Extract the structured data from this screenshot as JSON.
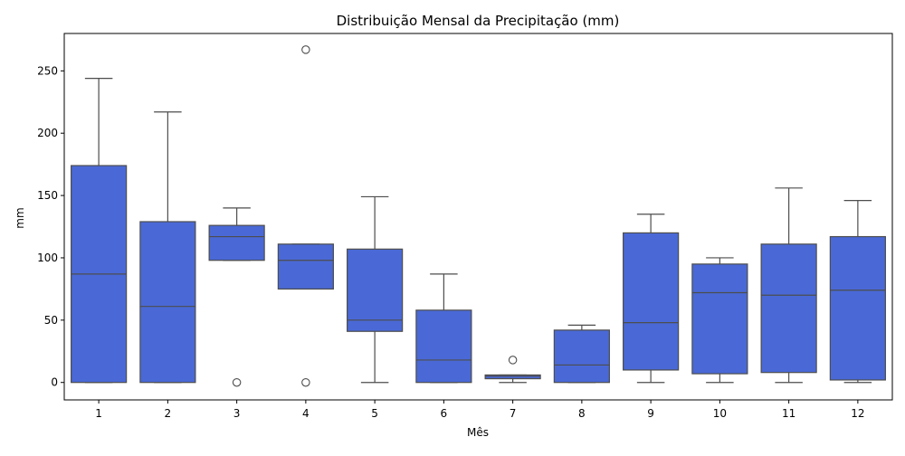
{
  "chart_data": {
    "type": "box",
    "title": "Distribuição Mensal da Precipitação (mm)",
    "xlabel": "Mês",
    "ylabel": "mm",
    "ylim": [
      -14,
      280
    ],
    "yticks": [
      0,
      50,
      100,
      150,
      200,
      250
    ],
    "categories": [
      "1",
      "2",
      "3",
      "4",
      "5",
      "6",
      "7",
      "8",
      "9",
      "10",
      "11",
      "12"
    ],
    "box_color": "#4a69d6",
    "line_color": "#4d4d4d",
    "boxes": [
      {
        "category": "1",
        "whisker_low": 0,
        "q1": 0,
        "median": 87,
        "q3": 174,
        "whisker_high": 244,
        "outliers": []
      },
      {
        "category": "2",
        "whisker_low": 0,
        "q1": 0,
        "median": 61,
        "q3": 129,
        "whisker_high": 217,
        "outliers": []
      },
      {
        "category": "3",
        "whisker_low": 98,
        "q1": 98,
        "median": 117,
        "q3": 126,
        "whisker_high": 140,
        "outliers": [
          0
        ]
      },
      {
        "category": "4",
        "whisker_low": 75,
        "q1": 75,
        "median": 98,
        "q3": 111,
        "whisker_high": 111,
        "outliers": [
          267,
          0
        ]
      },
      {
        "category": "5",
        "whisker_low": 0,
        "q1": 41,
        "median": 50,
        "q3": 107,
        "whisker_high": 149,
        "outliers": []
      },
      {
        "category": "6",
        "whisker_low": 0,
        "q1": 0,
        "median": 18,
        "q3": 58,
        "whisker_high": 87,
        "outliers": []
      },
      {
        "category": "7",
        "whisker_low": 0,
        "q1": 3,
        "median": 5,
        "q3": 6,
        "whisker_high": 6,
        "outliers": [
          18
        ]
      },
      {
        "category": "8",
        "whisker_low": 0,
        "q1": 0,
        "median": 14,
        "q3": 42,
        "whisker_high": 46,
        "outliers": []
      },
      {
        "category": "9",
        "whisker_low": 0,
        "q1": 10,
        "median": 48,
        "q3": 120,
        "whisker_high": 135,
        "outliers": []
      },
      {
        "category": "10",
        "whisker_low": 0,
        "q1": 7,
        "median": 72,
        "q3": 95,
        "whisker_high": 100,
        "outliers": []
      },
      {
        "category": "11",
        "whisker_low": 0,
        "q1": 8,
        "median": 70,
        "q3": 111,
        "whisker_high": 156,
        "outliers": []
      },
      {
        "category": "12",
        "whisker_low": 0,
        "q1": 2,
        "median": 74,
        "q3": 117,
        "whisker_high": 146,
        "outliers": []
      }
    ],
    "grid": false,
    "legend": "none"
  }
}
